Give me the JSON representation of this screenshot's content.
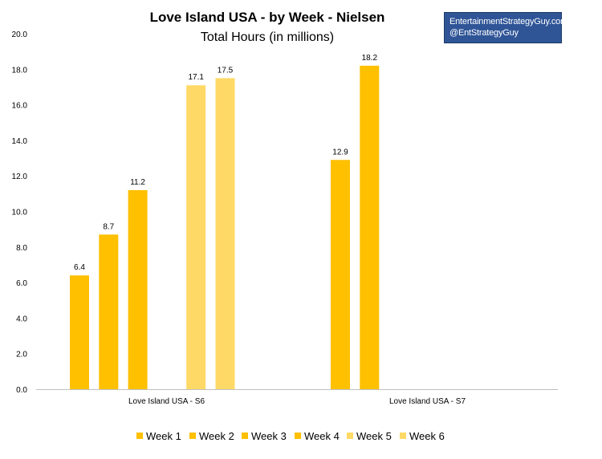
{
  "colors": {
    "bar_dark": "#ffc000",
    "bar_light": "#ffd966",
    "axis": "#bfbfbf",
    "credit_bg": "#2f5597"
  },
  "credit": {
    "line1": "EntertainmentStrategyGuy.com",
    "line2": "@EntStrategyGuy"
  },
  "chart_data": {
    "type": "bar",
    "title": "Love Island USA - by Week - Nielsen",
    "subtitle": "Total Hours (in millions)",
    "xlabel": "",
    "ylabel": "",
    "ylim": [
      0,
      20
    ],
    "yticks": [
      "0.0",
      "2.0",
      "4.0",
      "6.0",
      "8.0",
      "10.0",
      "12.0",
      "14.0",
      "16.0",
      "18.0",
      "20.0"
    ],
    "categories": [
      "Love Island USA - S6",
      "Love Island USA - S7"
    ],
    "legend_position": "bottom",
    "series": [
      {
        "name": "Week 1",
        "values": [
          6.4,
          12.9
        ],
        "color": "#ffc000"
      },
      {
        "name": "Week 2",
        "values": [
          8.7,
          18.2
        ],
        "color": "#ffc000"
      },
      {
        "name": "Week 3",
        "values": [
          11.2,
          null
        ],
        "color": "#ffc000"
      },
      {
        "name": "Week 4",
        "values": [
          null,
          null
        ],
        "color": "#ffc000"
      },
      {
        "name": "Week 5",
        "values": [
          17.1,
          null
        ],
        "color": "#ffd966"
      },
      {
        "name": "Week 6",
        "values": [
          17.5,
          null
        ],
        "color": "#ffd966"
      }
    ]
  }
}
